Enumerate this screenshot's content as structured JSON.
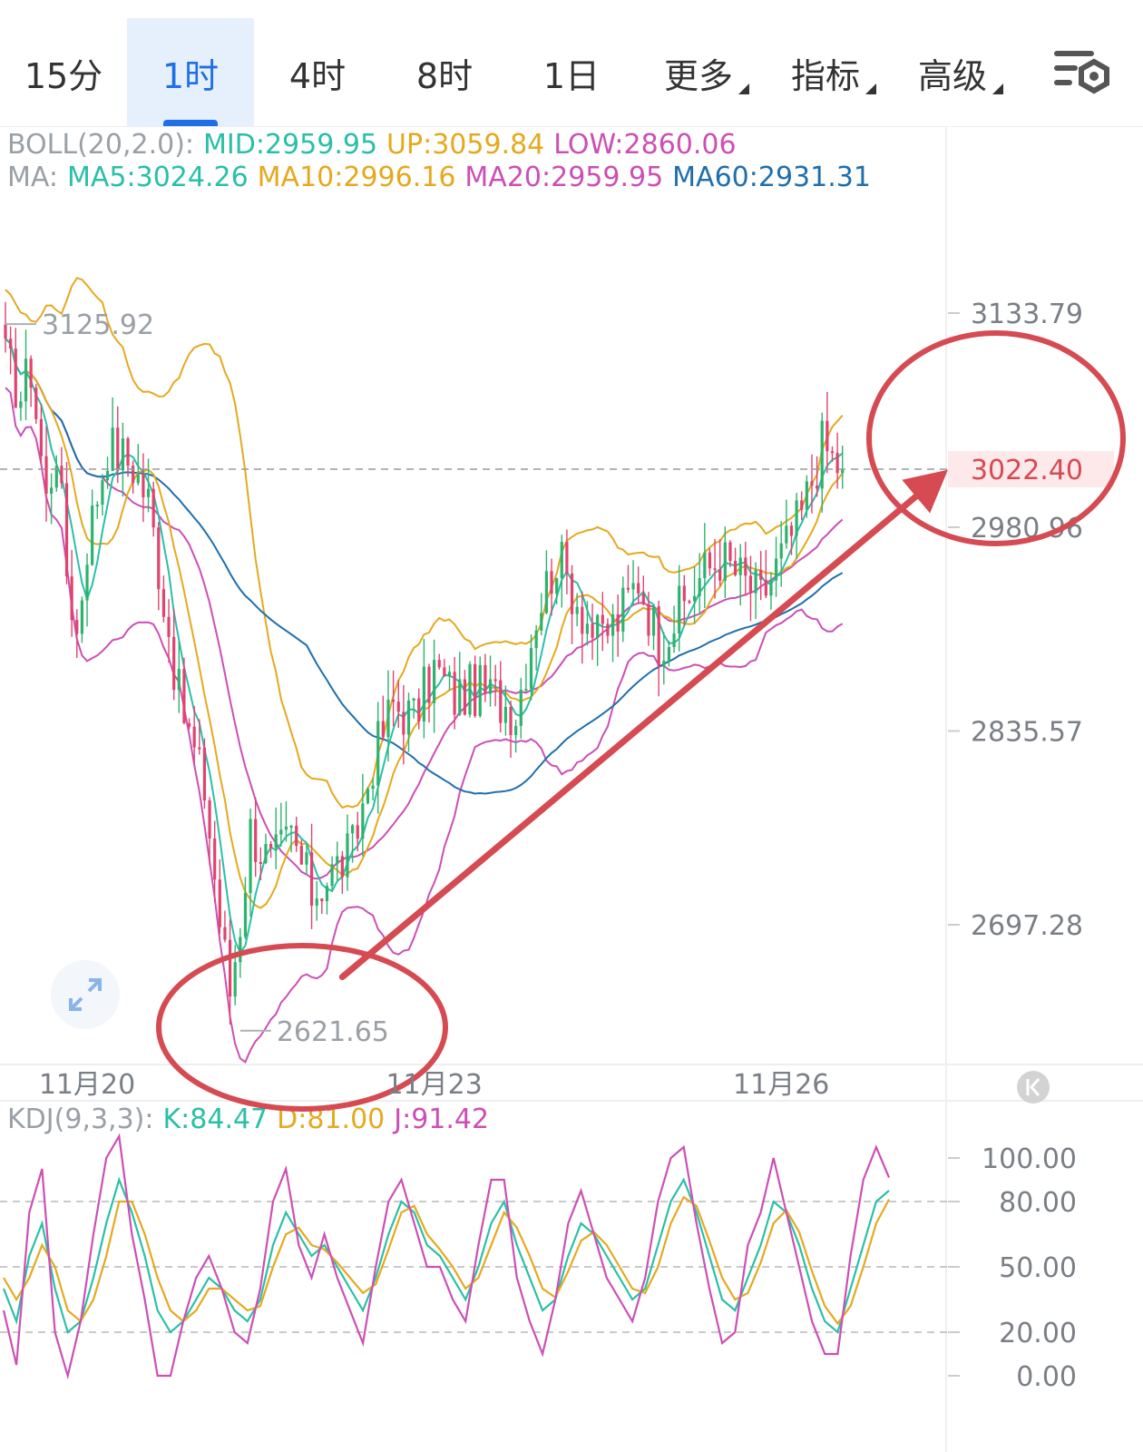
{
  "tabs": [
    {
      "label": "15分",
      "active": false,
      "dropdown": false
    },
    {
      "label": "1时",
      "active": true,
      "dropdown": false
    },
    {
      "label": "4时",
      "active": false,
      "dropdown": false
    },
    {
      "label": "8时",
      "active": false,
      "dropdown": false
    },
    {
      "label": "1日",
      "active": false,
      "dropdown": false
    },
    {
      "label": "更多",
      "active": false,
      "dropdown": true
    },
    {
      "label": "指标",
      "active": false,
      "dropdown": true
    },
    {
      "label": "高级",
      "active": false,
      "dropdown": true
    }
  ],
  "settings_icon": "chart-settings-icon",
  "expand_icon": "expand-icon",
  "scroll_latest_icon": "scroll-to-latest-icon",
  "colors": {
    "up": "#2db36d",
    "down": "#e0436e",
    "mid": "#2bbfa7",
    "upper": "#e5a91f",
    "lower": "#cc4fb5",
    "ma60": "#1f6fae",
    "label_gray": "#9aa0a6",
    "accent": "#1e6fe8",
    "annotation": "#d64a52",
    "current_price": "#d64a52"
  },
  "boll": {
    "name": "BOLL(20,2.0):",
    "mid": "MID:2959.95",
    "up": "UP:3059.84",
    "low": "LOW:2860.06"
  },
  "ma": {
    "name": "MA:",
    "ma5": "MA5:3024.26",
    "ma10": "MA10:2996.16",
    "ma20": "MA20:2959.95",
    "ma60": "MA60:2931.31"
  },
  "kdj": {
    "name": "KDJ(9,3,3):",
    "k": "K:84.47",
    "d": "D:81.00",
    "j": "J:91.42"
  },
  "chart_data": [
    {
      "type": "candlestick",
      "interval": "1时",
      "x_labels": [
        "11月20",
        "11月23",
        "11月26"
      ],
      "y_ticks": [
        3133.79,
        2980.96,
        2835.57,
        2697.28
      ],
      "y_tick_labels": [
        "3133.79",
        "2980.96",
        "2835.57",
        "2697.28"
      ],
      "ylim": [
        2600,
        3180
      ],
      "current_price": 3022.4,
      "current_price_label": "3022.40",
      "high_marker": {
        "value": 3125.92,
        "label": "3125.92"
      },
      "low_marker": {
        "value": 2621.65,
        "label": "2621.65"
      },
      "boll": {
        "mid": 2959.95,
        "up": 3059.84,
        "low": 2860.06
      },
      "ma": {
        "ma5": 3024.26,
        "ma10": 2996.16,
        "ma20": 2959.95,
        "ma60": 2931.31
      },
      "close_path": [
        [
          0,
          3100
        ],
        [
          3,
          3075
        ],
        [
          5,
          3095
        ],
        [
          8,
          3000
        ],
        [
          10,
          3040
        ],
        [
          12,
          2950
        ],
        [
          14,
          2905
        ],
        [
          16,
          2970
        ],
        [
          20,
          3040
        ],
        [
          25,
          3025
        ],
        [
          28,
          3000
        ],
        [
          31,
          2930
        ],
        [
          34,
          2860
        ],
        [
          37,
          2820
        ],
        [
          39,
          2795
        ],
        [
          42,
          2700
        ],
        [
          44,
          2650
        ],
        [
          46,
          2700
        ],
        [
          48,
          2765
        ],
        [
          52,
          2740
        ],
        [
          56,
          2760
        ],
        [
          60,
          2720
        ],
        [
          64,
          2735
        ],
        [
          68,
          2750
        ],
        [
          72,
          2815
        ],
        [
          76,
          2855
        ],
        [
          80,
          2845
        ],
        [
          84,
          2880
        ],
        [
          88,
          2860
        ],
        [
          92,
          2865
        ],
        [
          96,
          2860
        ],
        [
          100,
          2850
        ],
        [
          104,
          2920
        ],
        [
          108,
          2960
        ],
        [
          112,
          2930
        ],
        [
          116,
          2900
        ],
        [
          120,
          2915
        ],
        [
          124,
          2945
        ],
        [
          128,
          2900
        ],
        [
          132,
          2920
        ],
        [
          136,
          2945
        ],
        [
          140,
          2960
        ],
        [
          144,
          2945
        ],
        [
          148,
          2930
        ],
        [
          152,
          2960
        ],
        [
          156,
          2990
        ],
        [
          160,
          3040
        ],
        [
          162,
          3030
        ],
        [
          164,
          3022
        ]
      ],
      "trend_arrow": {
        "from": [
          66,
          2660
        ],
        "to": [
          174,
          3022
        ]
      }
    },
    {
      "type": "line",
      "indicator": "KDJ(9,3,3)",
      "y_ticks": [
        100,
        80,
        50,
        20,
        0
      ],
      "y_tick_labels": [
        "100.00",
        "80.00",
        "50.00",
        "20.00",
        "0.00"
      ],
      "guides": [
        80,
        50,
        20
      ],
      "ylim": [
        -5,
        115
      ],
      "series": [
        {
          "name": "K",
          "last": 84.47,
          "values": [
            40,
            25,
            55,
            70,
            40,
            20,
            25,
            45,
            70,
            90,
            75,
            55,
            30,
            20,
            25,
            35,
            45,
            40,
            30,
            25,
            35,
            60,
            75,
            65,
            55,
            60,
            50,
            40,
            30,
            45,
            65,
            80,
            75,
            60,
            55,
            45,
            35,
            50,
            70,
            80,
            60,
            45,
            30,
            35,
            55,
            70,
            65,
            55,
            45,
            35,
            40,
            60,
            80,
            90,
            75,
            55,
            35,
            30,
            45,
            60,
            80,
            75,
            60,
            40,
            25,
            20,
            40,
            60,
            80,
            85
          ]
        },
        {
          "name": "D",
          "last": 81.0,
          "values": [
            45,
            35,
            45,
            60,
            50,
            30,
            25,
            35,
            55,
            80,
            80,
            65,
            45,
            30,
            25,
            30,
            40,
            40,
            35,
            30,
            32,
            50,
            65,
            68,
            60,
            58,
            52,
            45,
            38,
            42,
            58,
            75,
            78,
            65,
            58,
            50,
            40,
            45,
            60,
            75,
            68,
            55,
            40,
            36,
            48,
            62,
            66,
            60,
            50,
            40,
            38,
            50,
            70,
            82,
            78,
            62,
            45,
            35,
            38,
            52,
            70,
            76,
            66,
            48,
            32,
            24,
            32,
            50,
            70,
            81
          ]
        },
        {
          "name": "J",
          "last": 91.42,
          "values": [
            30,
            5,
            75,
            95,
            20,
            0,
            25,
            65,
            100,
            110,
            65,
            35,
            0,
            0,
            25,
            45,
            55,
            40,
            20,
            15,
            40,
            80,
            95,
            60,
            45,
            65,
            45,
            30,
            15,
            50,
            80,
            90,
            70,
            50,
            50,
            35,
            25,
            60,
            90,
            90,
            45,
            25,
            10,
            35,
            70,
            85,
            65,
            45,
            35,
            25,
            45,
            80,
            100,
            105,
            70,
            40,
            15,
            20,
            60,
            75,
            100,
            75,
            50,
            25,
            10,
            10,
            55,
            90,
            105,
            91
          ]
        }
      ]
    }
  ]
}
